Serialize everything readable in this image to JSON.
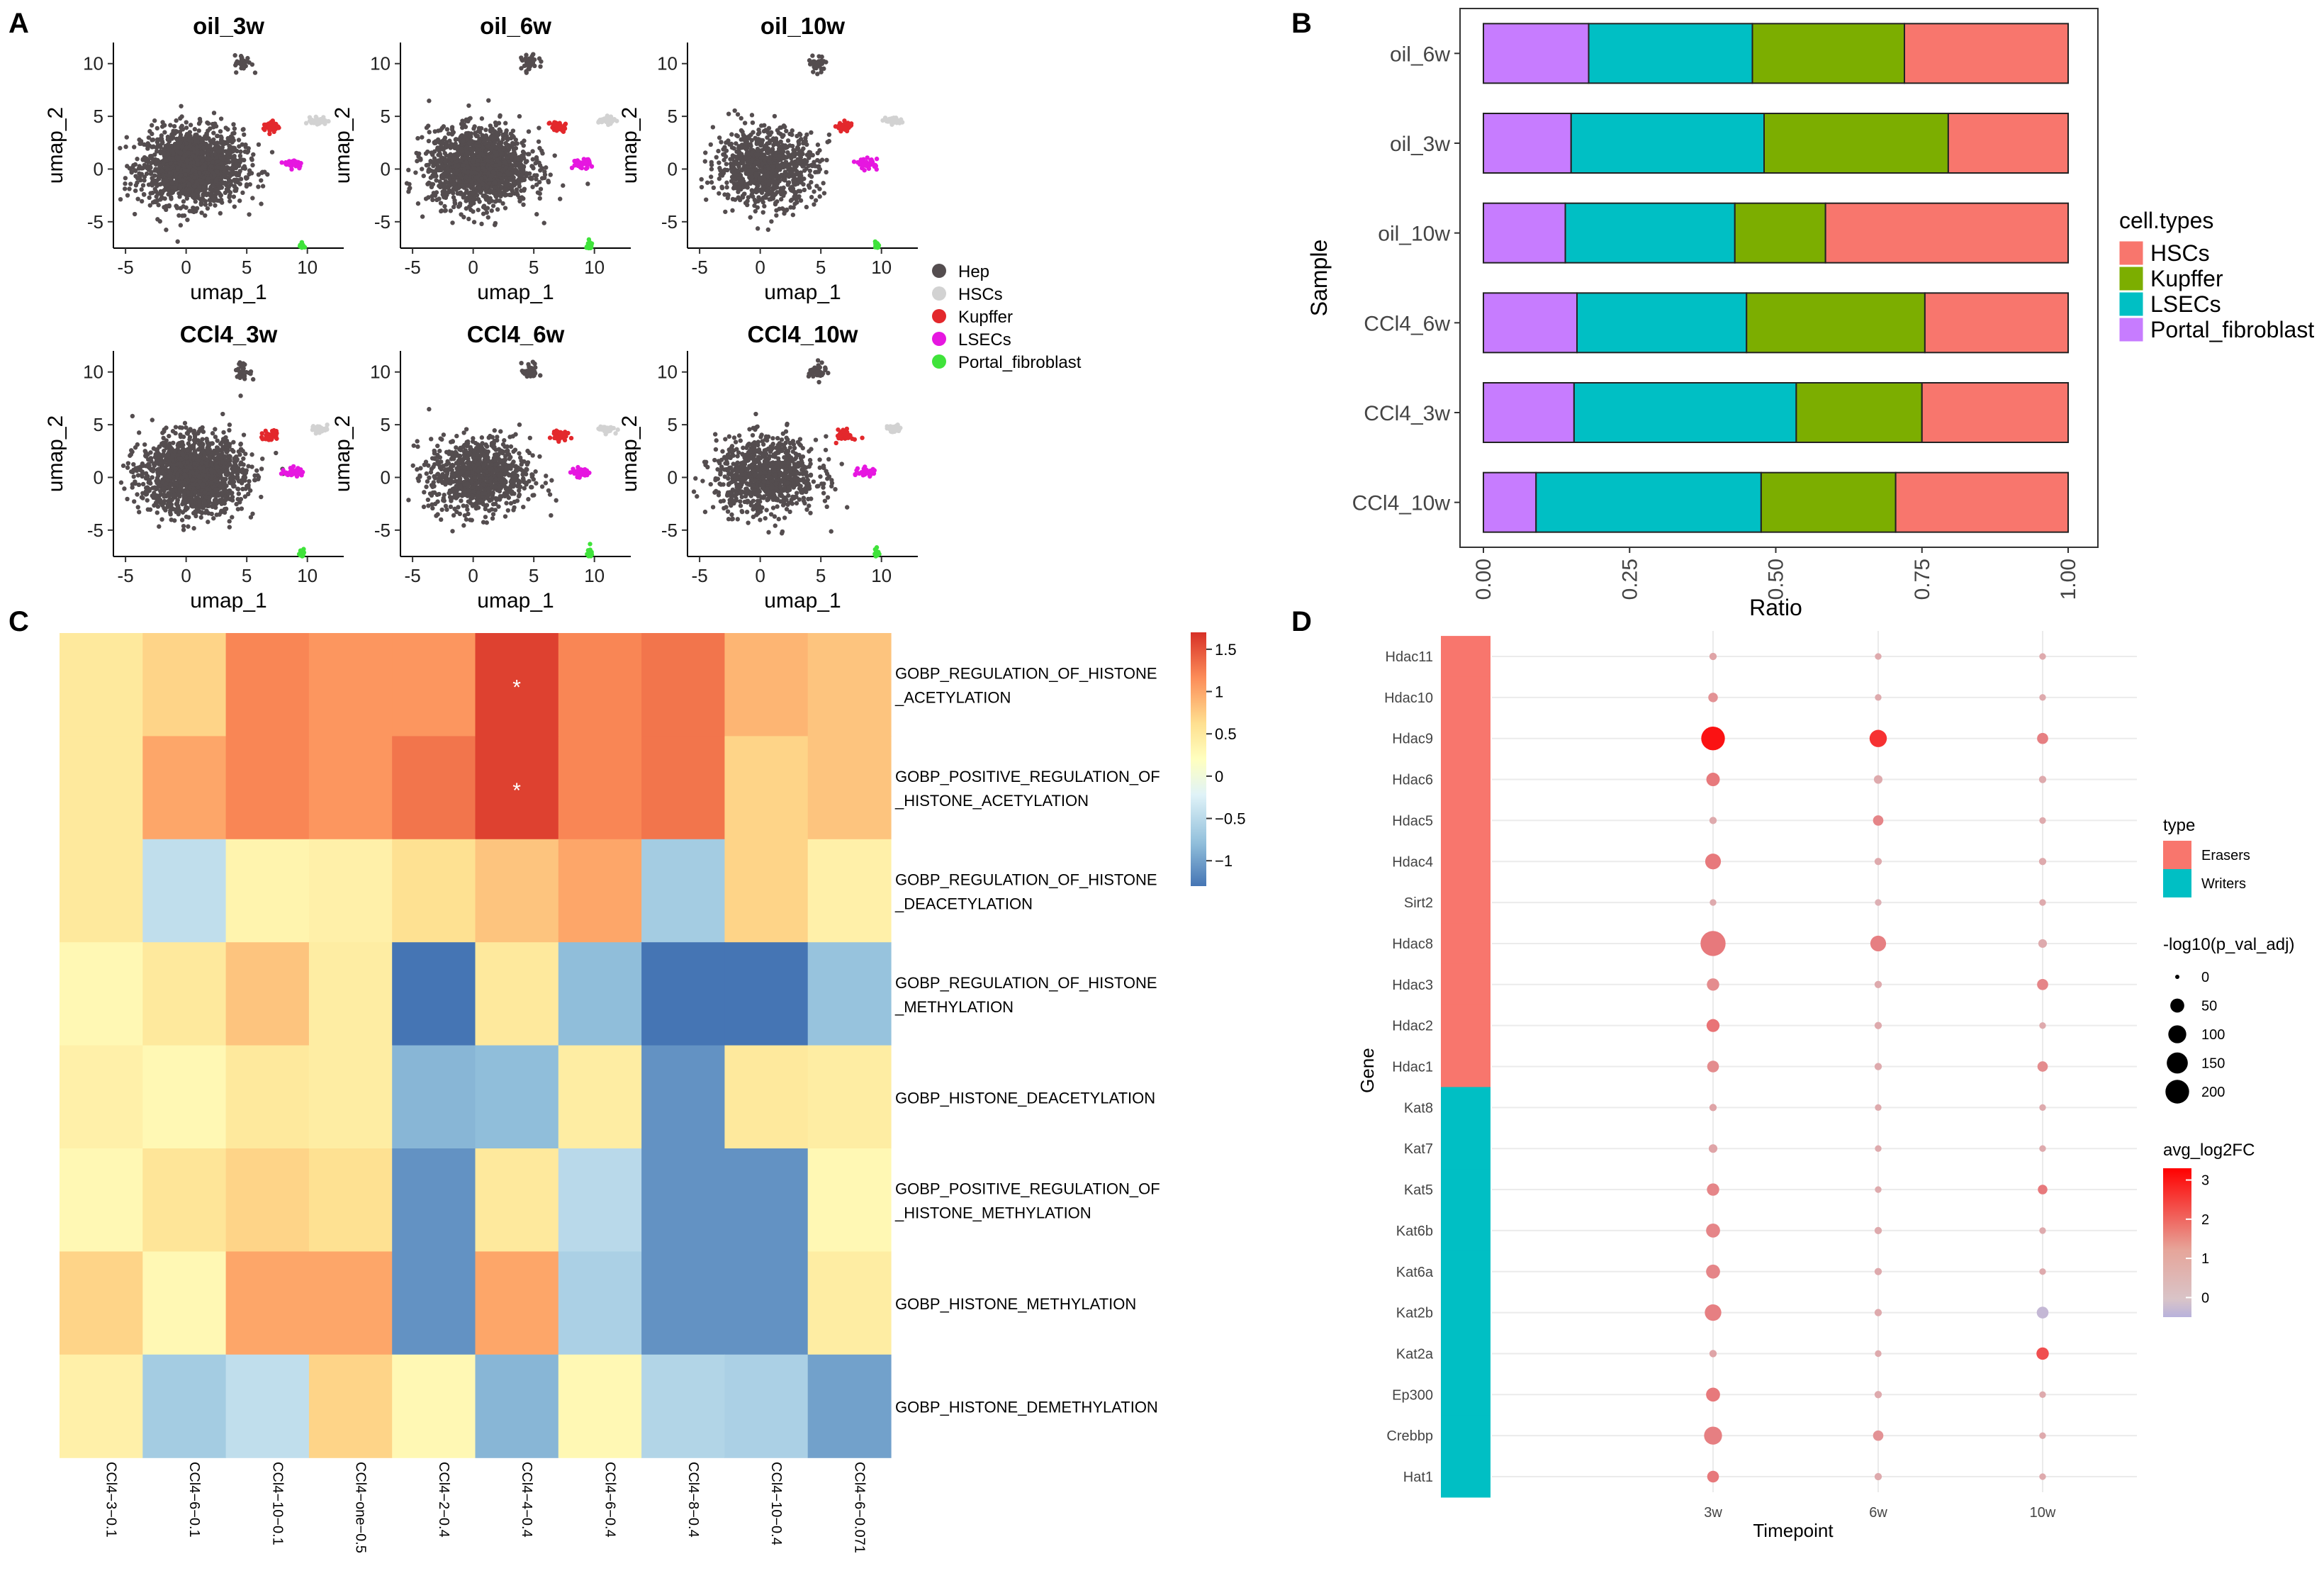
{
  "panels": {
    "a": "A",
    "b": "B",
    "c": "C",
    "d": "D"
  },
  "chart_data": [
    {
      "panel": "A",
      "type": "scatter",
      "subtype": "umap",
      "xlabel": "umap_1",
      "ylabel": "umap_2",
      "xlim": [
        -6,
        13
      ],
      "ylim": [
        -7.5,
        12
      ],
      "xticks": [
        -5,
        0,
        5,
        10
      ],
      "yticks": [
        -5,
        0,
        5,
        10
      ],
      "facets": [
        "oil_3w",
        "oil_6w",
        "oil_10w",
        "CCl4_3w",
        "CCl4_6w",
        "CCl4_10w"
      ],
      "legend": {
        "position": "right",
        "entries": [
          {
            "label": "Hep",
            "color": "#544d4f"
          },
          {
            "label": "HSCs",
            "color": "#d2d2d2"
          },
          {
            "label": "Kupffer",
            "color": "#e3282c"
          },
          {
            "label": "LSECs",
            "color": "#e617e0"
          },
          {
            "label": "Portal_fibroblast",
            "color": "#3fe33a"
          }
        ]
      },
      "clusters": [
        {
          "type": "Hep",
          "center": [
            0.5,
            0.2
          ],
          "spread": [
            3.8,
            3.2
          ]
        },
        {
          "type": "HSCs",
          "center": [
            11,
            4.6
          ],
          "spread": [
            0.6,
            0.3
          ]
        },
        {
          "type": "Kupffer",
          "center": [
            7,
            4.0
          ],
          "spread": [
            0.6,
            0.5
          ]
        },
        {
          "type": "LSECs",
          "center": [
            8.9,
            0.5
          ],
          "spread": [
            0.7,
            0.4
          ]
        },
        {
          "type": "Portal_fibroblast",
          "center": [
            9.6,
            -7.5
          ],
          "spread": [
            0.2,
            0.6
          ]
        }
      ]
    },
    {
      "panel": "B",
      "type": "bar",
      "orientation": "horizontal",
      "stacked": true,
      "categories": [
        "oil_6w",
        "oil_3w",
        "oil_10w",
        "CCl4_6w",
        "CCl4_3w",
        "CCl4_10w"
      ],
      "series": [
        {
          "name": "Portal_fibroblast",
          "color": "#c77cff",
          "values": [
            0.18,
            0.15,
            0.14,
            0.16,
            0.155,
            0.09
          ]
        },
        {
          "name": "LSECs",
          "color": "#00bfc4",
          "values": [
            0.28,
            0.33,
            0.29,
            0.29,
            0.38,
            0.385
          ]
        },
        {
          "name": "Kupffer",
          "color": "#7cae00",
          "values": [
            0.26,
            0.315,
            0.155,
            0.305,
            0.215,
            0.23
          ]
        },
        {
          "name": "HSCs",
          "color": "#f8766d",
          "values": [
            0.28,
            0.205,
            0.415,
            0.245,
            0.25,
            0.295
          ]
        }
      ],
      "xlabel": "Ratio",
      "ylabel": "Sample",
      "xlim": [
        0,
        1
      ],
      "xticks": [
        "0.00",
        "0.25",
        "0.50",
        "0.75",
        "1.00"
      ],
      "legend": {
        "title": "cell.types",
        "position": "right",
        "entries": [
          "HSCs",
          "Kupffer",
          "LSECs",
          "Portal_fibroblast"
        ]
      }
    },
    {
      "panel": "C",
      "type": "heatmap",
      "columns": [
        "CCl4−3−0.1",
        "CCl4−6−0.1",
        "CCl4−10−0.1",
        "CCl4−one−0.5",
        "CCl4−2−0.4",
        "CCl4−4−0.4",
        "CCl4−6−0.4",
        "CCl4−8−0.4",
        "CCl4−10−0.4",
        "CCl4−6−0.071"
      ],
      "rows": [
        [
          "GOBP_REGULATION_OF_HISTONE",
          "_ACETYLATION"
        ],
        [
          "GOBP_POSITIVE_REGULATION_OF",
          "_HISTONE_ACETYLATION"
        ],
        [
          "GOBP_REGULATION_OF_HISTONE",
          "_DEACETYLATION"
        ],
        [
          "GOBP_REGULATION_OF_HISTONE",
          "_METHYLATION"
        ],
        [
          "GOBP_HISTONE_DEACETYLATION"
        ],
        [
          "GOBP_POSITIVE_REGULATION_OF",
          "_HISTONE_METHYLATION"
        ],
        [
          "GOBP_HISTONE_METHYLATION"
        ],
        [
          "GOBP_HISTONE_DEMETHYLATION"
        ]
      ],
      "values": [
        [
          0.5,
          0.7,
          1.2,
          1.1,
          1.1,
          1.6,
          1.2,
          1.3,
          0.9,
          0.8
        ],
        [
          0.5,
          1.0,
          1.2,
          1.1,
          1.3,
          1.6,
          1.2,
          1.3,
          0.7,
          0.8
        ],
        [
          0.5,
          -0.45,
          0.35,
          0.4,
          0.6,
          0.8,
          1.0,
          -0.65,
          0.7,
          0.4
        ],
        [
          0.3,
          0.5,
          0.8,
          0.45,
          -1.3,
          0.5,
          -0.8,
          -1.3,
          -1.3,
          -0.75
        ],
        [
          0.4,
          0.3,
          0.5,
          0.45,
          -0.85,
          -0.8,
          0.45,
          -1.1,
          0.5,
          0.45
        ],
        [
          0.3,
          0.55,
          0.7,
          0.6,
          -1.1,
          0.5,
          -0.5,
          -1.1,
          -1.1,
          0.3
        ],
        [
          0.7,
          0.3,
          1.0,
          1.0,
          -1.1,
          1.0,
          -0.6,
          -1.1,
          -1.1,
          0.45
        ],
        [
          0.4,
          -0.65,
          -0.45,
          0.7,
          0.3,
          -0.85,
          0.3,
          -0.55,
          -0.6,
          -1.0
        ]
      ],
      "significant": [
        [
          0,
          5
        ],
        [
          1,
          5
        ]
      ],
      "marker": "*",
      "colorbar": {
        "ticks": [
          1.5,
          1,
          0.5,
          0,
          -0.5,
          -1
        ],
        "labels": [
          "1.5",
          "1",
          "0.5",
          "0",
          "−0.5",
          "−1"
        ],
        "range": [
          -1.3,
          1.7
        ],
        "colors": [
          "#4575b4",
          "#91bfdb",
          "#e0f3f8",
          "#ffffbf",
          "#fee090",
          "#fc8d59",
          "#d73027"
        ]
      }
    },
    {
      "panel": "D",
      "type": "scatter",
      "subtype": "dotplot",
      "genes": [
        "Hdac11",
        "Hdac10",
        "Hdac9",
        "Hdac6",
        "Hdac5",
        "Hdac4",
        "Sirt2",
        "Hdac8",
        "Hdac3",
        "Hdac2",
        "Hdac1",
        "Kat8",
        "Kat7",
        "Kat5",
        "Kat6b",
        "Kat6a",
        "Kat2b",
        "Kat2a",
        "Ep300",
        "Crebbp",
        "Hat1"
      ],
      "gene_type": [
        "Erasers",
        "Erasers",
        "Erasers",
        "Erasers",
        "Erasers",
        "Erasers",
        "Erasers",
        "Erasers",
        "Erasers",
        "Erasers",
        "Erasers",
        "Writers",
        "Writers",
        "Writers",
        "Writers",
        "Writers",
        "Writers",
        "Writers",
        "Writers",
        "Writers",
        "Writers"
      ],
      "timepoints": [
        "3w",
        "6w",
        "10w"
      ],
      "avg_log2FC": [
        [
          0.6,
          0.5,
          0.5
        ],
        [
          0.9,
          0.5,
          0.5
        ],
        [
          3.0,
          2.5,
          1.2
        ],
        [
          1.3,
          0.5,
          0.5
        ],
        [
          0.5,
          1.1,
          0.5
        ],
        [
          1.3,
          0.5,
          0.5
        ],
        [
          0.5,
          0.4,
          0.5
        ],
        [
          1.3,
          1.2,
          0.5
        ],
        [
          1.0,
          0.5,
          1.1
        ],
        [
          1.4,
          0.5,
          0.5
        ],
        [
          1.0,
          0.5,
          1.0
        ],
        [
          0.6,
          0.5,
          0.5
        ],
        [
          0.6,
          0.5,
          0.5
        ],
        [
          1.1,
          0.5,
          1.3
        ],
        [
          1.1,
          0.5,
          0.5
        ],
        [
          1.1,
          0.5,
          0.5
        ],
        [
          1.2,
          0.5,
          -0.3
        ],
        [
          0.6,
          0.5,
          2.0
        ],
        [
          1.3,
          0.5,
          0.5
        ],
        [
          1.2,
          0.9,
          0.5
        ],
        [
          1.3,
          0.5,
          0.5
        ]
      ],
      "neg_log10_p": [
        [
          5,
          3,
          3
        ],
        [
          15,
          3,
          3
        ],
        [
          200,
          90,
          25
        ],
        [
          45,
          10,
          5
        ],
        [
          5,
          20,
          3
        ],
        [
          70,
          5,
          5
        ],
        [
          3,
          3,
          3
        ],
        [
          230,
          70,
          10
        ],
        [
          35,
          5,
          25
        ],
        [
          40,
          5,
          3
        ],
        [
          30,
          5,
          20
        ],
        [
          5,
          3,
          3
        ],
        [
          10,
          3,
          3
        ],
        [
          35,
          3,
          15
        ],
        [
          50,
          5,
          3
        ],
        [
          50,
          5,
          3
        ],
        [
          80,
          5,
          30
        ],
        [
          5,
          3,
          35
        ],
        [
          50,
          5,
          3
        ],
        [
          100,
          20,
          3
        ],
        [
          30,
          5,
          3
        ]
      ],
      "xlabel": "Timepoint",
      "ylabel": "Gene",
      "legend": {
        "position": "right",
        "type_title": "type",
        "type_entries": [
          {
            "label": "Erasers",
            "color": "#f8766d"
          },
          {
            "label": "Writers",
            "color": "#00bfc4"
          }
        ],
        "size_title": "-log10(p_val_adj)",
        "size_entries": [
          0,
          50,
          100,
          150,
          200
        ],
        "color_title": "avg_log2FC",
        "color_ticks": [
          3,
          2,
          1,
          0
        ],
        "color_range": [
          -0.5,
          3.3
        ]
      }
    }
  ]
}
